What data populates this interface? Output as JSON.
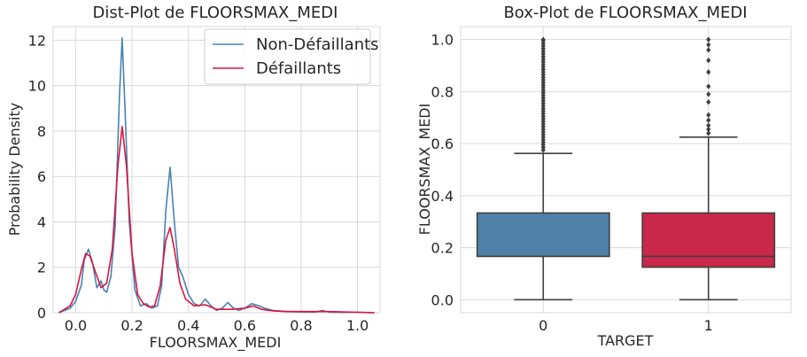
{
  "chart_data": [
    {
      "type": "line",
      "title": "Dist-Plot de FLOORSMAX_MEDI",
      "xlabel": "FLOORSMAX_MEDI",
      "ylabel": "Probability Density",
      "xlim": [
        -0.08,
        1.08
      ],
      "ylim": [
        0,
        12.6
      ],
      "xticks": [
        0.0,
        0.2,
        0.4,
        0.6,
        0.8,
        1.0
      ],
      "xtick_labels": [
        "0.0",
        "0.2",
        "0.4",
        "0.6",
        "0.8",
        "1.0"
      ],
      "yticks": [
        0,
        2,
        4,
        6,
        8,
        10,
        12
      ],
      "ytick_labels": [
        "0",
        "2",
        "4",
        "6",
        "8",
        "10",
        "12"
      ],
      "grid": true,
      "legend_position": "top-right",
      "series": [
        {
          "name": "Non-Défaillants",
          "color": "#4682b4",
          "x": [
            -0.06,
            -0.02,
            0.0,
            0.02,
            0.03,
            0.045,
            0.06,
            0.075,
            0.09,
            0.1,
            0.11,
            0.125,
            0.14,
            0.155,
            0.165,
            0.175,
            0.19,
            0.21,
            0.23,
            0.25,
            0.27,
            0.29,
            0.305,
            0.32,
            0.335,
            0.35,
            0.365,
            0.38,
            0.4,
            0.42,
            0.44,
            0.46,
            0.48,
            0.5,
            0.52,
            0.54,
            0.56,
            0.58,
            0.6,
            0.625,
            0.65,
            0.67,
            0.7,
            0.75,
            0.8,
            0.85,
            0.875,
            0.9,
            0.95,
            1.0,
            1.03,
            1.06
          ],
          "y": [
            0.0,
            0.2,
            0.5,
            1.2,
            2.3,
            2.8,
            2.2,
            1.1,
            1.4,
            1.0,
            0.9,
            1.6,
            3.8,
            9.5,
            12.1,
            9.0,
            4.0,
            1.0,
            0.3,
            0.4,
            0.2,
            0.3,
            1.2,
            4.5,
            6.4,
            4.0,
            2.0,
            1.6,
            0.8,
            0.4,
            0.3,
            0.6,
            0.3,
            0.1,
            0.2,
            0.45,
            0.2,
            0.1,
            0.2,
            0.4,
            0.3,
            0.2,
            0.1,
            0.05,
            0.03,
            0.02,
            0.1,
            0.02,
            0.01,
            0.02,
            0.01,
            0.0
          ]
        },
        {
          "name": "Défaillants",
          "color": "#dc143c",
          "x": [
            -0.06,
            -0.02,
            0.0,
            0.02,
            0.035,
            0.05,
            0.07,
            0.09,
            0.11,
            0.13,
            0.15,
            0.165,
            0.18,
            0.2,
            0.22,
            0.24,
            0.26,
            0.28,
            0.3,
            0.32,
            0.335,
            0.35,
            0.37,
            0.39,
            0.42,
            0.46,
            0.5,
            0.55,
            0.6,
            0.63,
            0.66,
            0.7,
            0.75,
            0.8,
            0.9,
            1.0,
            1.06
          ],
          "y": [
            0.0,
            0.3,
            0.8,
            1.9,
            2.6,
            2.5,
            1.8,
            1.1,
            1.3,
            2.8,
            6.5,
            8.2,
            6.5,
            2.6,
            0.8,
            0.4,
            0.25,
            0.3,
            1.2,
            3.2,
            3.75,
            2.8,
            1.3,
            0.6,
            0.3,
            0.35,
            0.15,
            0.15,
            0.2,
            0.3,
            0.15,
            0.08,
            0.05,
            0.05,
            0.05,
            0.02,
            0.0
          ]
        }
      ]
    },
    {
      "type": "box",
      "title": "Box-Plot de FLOORSMAX_MEDI",
      "xlabel": "TARGET",
      "ylabel": "FLOORSMAX_MEDI",
      "ylim": [
        -0.05,
        1.05
      ],
      "yticks": [
        0.0,
        0.2,
        0.4,
        0.6,
        0.8,
        1.0
      ],
      "ytick_labels": [
        "0.0",
        "0.2",
        "0.4",
        "0.6",
        "0.8",
        "1.0"
      ],
      "categories": [
        "0",
        "1"
      ],
      "grid": true,
      "boxes": [
        {
          "category": "0",
          "color": "#4f81a8",
          "whisker_low": 0.0,
          "q1": 0.1667,
          "median": 0.1667,
          "q3": 0.3333,
          "whisker_high": 0.5625,
          "outliers": [
            0.575,
            0.585,
            0.595,
            0.605,
            0.615,
            0.625,
            0.635,
            0.645,
            0.655,
            0.665,
            0.675,
            0.685,
            0.695,
            0.705,
            0.715,
            0.725,
            0.735,
            0.745,
            0.755,
            0.765,
            0.775,
            0.785,
            0.795,
            0.805,
            0.815,
            0.825,
            0.835,
            0.845,
            0.855,
            0.865,
            0.875,
            0.885,
            0.895,
            0.905,
            0.915,
            0.925,
            0.935,
            0.945,
            0.955,
            0.965,
            0.975,
            0.985,
            0.995,
            1.0
          ]
        },
        {
          "category": "1",
          "color": "#c9284a",
          "whisker_low": 0.0,
          "q1": 0.125,
          "median": 0.1667,
          "q3": 0.3333,
          "whisker_high": 0.625,
          "outliers": [
            0.64,
            0.655,
            0.67,
            0.69,
            0.71,
            0.76,
            0.79,
            0.82,
            0.875,
            0.92,
            0.96,
            0.98,
            1.0
          ]
        }
      ]
    }
  ]
}
